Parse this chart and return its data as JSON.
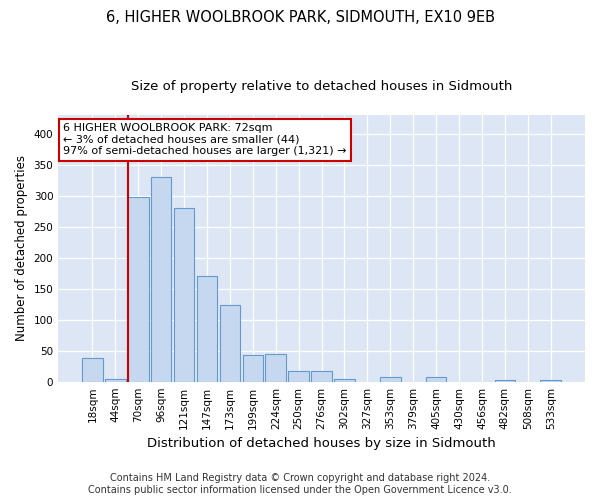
{
  "title1": "6, HIGHER WOOLBROOK PARK, SIDMOUTH, EX10 9EB",
  "title2": "Size of property relative to detached houses in Sidmouth",
  "xlabel": "Distribution of detached houses by size in Sidmouth",
  "ylabel": "Number of detached properties",
  "categories": [
    "18sqm",
    "44sqm",
    "70sqm",
    "96sqm",
    "121sqm",
    "147sqm",
    "173sqm",
    "199sqm",
    "224sqm",
    "250sqm",
    "276sqm",
    "302sqm",
    "327sqm",
    "353sqm",
    "379sqm",
    "405sqm",
    "430sqm",
    "456sqm",
    "482sqm",
    "508sqm",
    "533sqm"
  ],
  "values": [
    38,
    5,
    298,
    330,
    280,
    170,
    123,
    43,
    45,
    18,
    18,
    5,
    0,
    7,
    0,
    7,
    0,
    0,
    3,
    0,
    3
  ],
  "bar_color": "#c5d8f0",
  "bar_edge_color": "#6699cc",
  "highlight_index": 2,
  "highlight_line_color": "#cc0000",
  "annotation_text": "6 HIGHER WOOLBROOK PARK: 72sqm\n← 3% of detached houses are smaller (44)\n97% of semi-detached houses are larger (1,321) →",
  "annotation_box_color": "#ffffff",
  "annotation_box_edge_color": "#cc0000",
  "footnote1": "Contains HM Land Registry data © Crown copyright and database right 2024.",
  "footnote2": "Contains public sector information licensed under the Open Government Licence v3.0.",
  "ylim": [
    0,
    430
  ],
  "yticks": [
    0,
    50,
    100,
    150,
    200,
    250,
    300,
    350,
    400
  ],
  "fig_bg_color": "#ffffff",
  "plot_bg_color": "#dce6f5",
  "title1_fontsize": 10.5,
  "title2_fontsize": 9.5,
  "xlabel_fontsize": 9.5,
  "ylabel_fontsize": 8.5,
  "tick_fontsize": 7.5,
  "annot_fontsize": 8,
  "footnote_fontsize": 7
}
